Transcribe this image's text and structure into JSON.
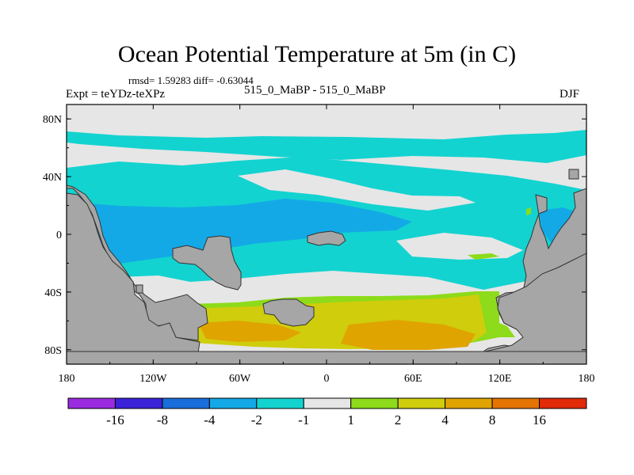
{
  "plot": {
    "title": "Ocean Potential Temperature at 5m (in C)",
    "stats": "rmsd= 1.59283 diff= -0.63044",
    "left_label": "Expt = teYDz-teXPz",
    "center_label": "515_0_MaBP - 515_0_MaBP",
    "right_label": "DJF"
  },
  "axes": {
    "lat_ticks": [
      {
        "label": "80N",
        "value": 80
      },
      {
        "label": "40N",
        "value": 40
      },
      {
        "label": "0",
        "value": 0
      },
      {
        "label": "40S",
        "value": -40
      },
      {
        "label": "80S",
        "value": -80
      }
    ],
    "lon_ticks": [
      {
        "label": "180",
        "value": -180
      },
      {
        "label": "120W",
        "value": -120
      },
      {
        "label": "60W",
        "value": -60
      },
      {
        "label": "0",
        "value": 0
      },
      {
        "label": "60E",
        "value": 60
      },
      {
        "label": "120E",
        "value": 120
      },
      {
        "label": "180",
        "value": 180
      }
    ]
  },
  "chart_data": {
    "type": "heatmap",
    "title": "Ocean Potential Temperature at 5m (in C)",
    "x_range": [
      -180,
      180
    ],
    "y_range": [
      -90,
      90
    ],
    "colorbar": {
      "colors": [
        "#9a2be0",
        "#3a22d8",
        "#1a6edc",
        "#13a9e6",
        "#13d3d0",
        "#e6e6e6",
        "#8ddb1a",
        "#cfcd0c",
        "#e0a400",
        "#e57400",
        "#e02a08"
      ],
      "labels": [
        "-16",
        "-8",
        "-4",
        "-2",
        "-1",
        "1",
        "2",
        "4",
        "8",
        "16"
      ]
    }
  },
  "colors": {
    "land": "#a6a6a6",
    "near_zero": "#e6e6e6",
    "cyan": "#13d3d0",
    "light_blue": "#13a9e6",
    "green": "#8ddb1a",
    "yellow": "#cfcd0c",
    "orange": "#e0a400"
  }
}
